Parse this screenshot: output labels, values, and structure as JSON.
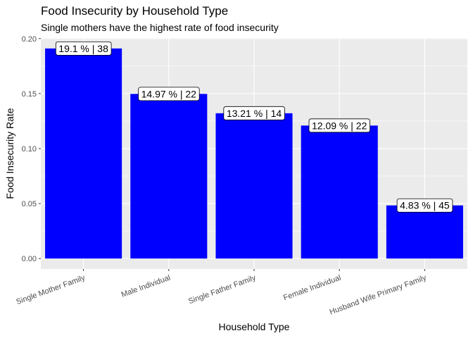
{
  "chart_data": {
    "type": "bar",
    "title": "Food Insecurity by Household Type",
    "subtitle": "Single mothers have the highest rate of food insecurity",
    "xlabel": "Household Type",
    "ylabel": "Food Insecurity Rate",
    "categories": [
      "Single Mother Family",
      "Male Individual",
      "Single Father Family",
      "Female Individual",
      "Husband Wife Primary Family"
    ],
    "values": [
      0.191,
      0.1497,
      0.1321,
      0.1209,
      0.0483
    ],
    "data_labels": [
      "19.1 % | 38",
      "14.97 % | 22",
      "13.21 % | 14",
      "12.09 % | 22",
      "4.83 % | 45"
    ],
    "yticks": [
      0,
      0.05,
      0.1,
      0.15,
      0.2
    ],
    "ytick_labels": [
      "0.00",
      "0.05",
      "0.10",
      "0.15",
      "0.20"
    ],
    "ylim": [
      -0.0095,
      0.2005
    ],
    "grid": true,
    "bar_color": "#0000ff",
    "panel_background": "#ebebeb",
    "gridline_color": "#ffffff"
  }
}
